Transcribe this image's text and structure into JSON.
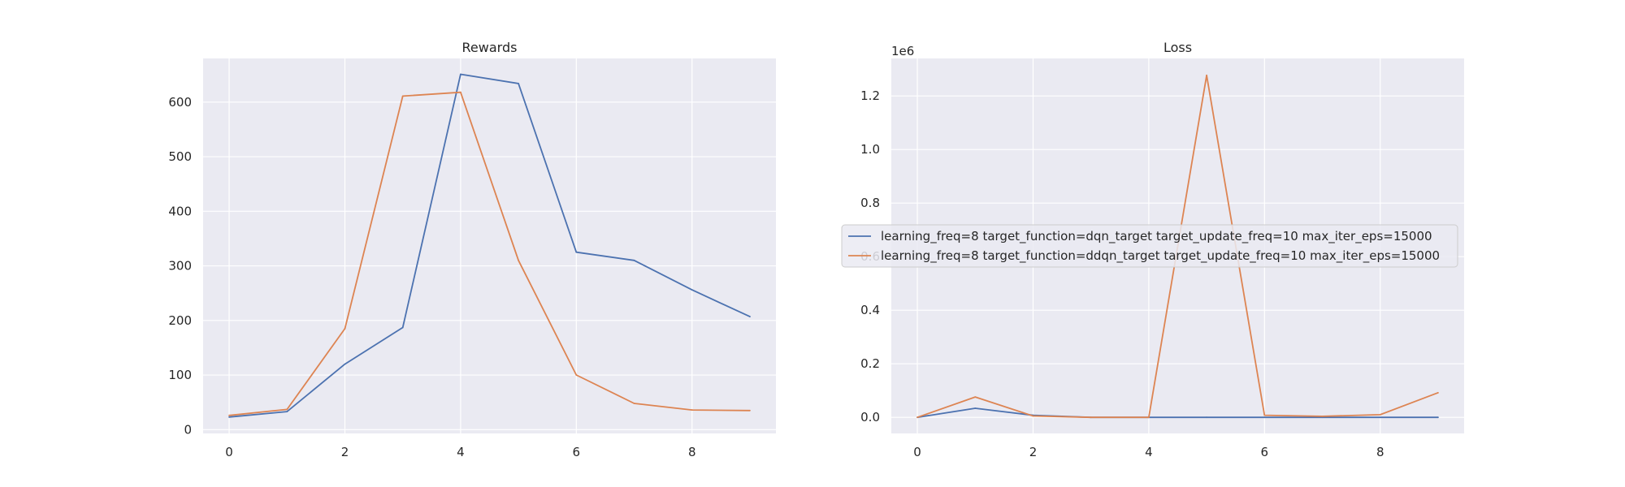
{
  "chart_data": [
    {
      "type": "line",
      "title": "Rewards",
      "xlabel": "",
      "ylabel": "",
      "xlim": [
        -0.45,
        9.45
      ],
      "ylim": [
        -7,
        680
      ],
      "xticks": [
        0,
        2,
        4,
        6,
        8
      ],
      "yticks": [
        0,
        100,
        200,
        300,
        400,
        500,
        600
      ],
      "ytick_labels": [
        "0",
        "100",
        "200",
        "300",
        "400",
        "500",
        "600"
      ],
      "offset_text": "",
      "grid": true,
      "x": [
        0,
        1,
        2,
        3,
        4,
        5,
        6,
        7,
        8,
        9
      ],
      "series": [
        {
          "name": "learning_freq=8 target_function=dqn_target target_update_freq=10 max_iter_eps=15000",
          "color": "#4c72b0",
          "values": [
            23,
            33,
            120,
            187,
            651,
            634,
            325,
            310,
            256,
            207
          ]
        },
        {
          "name": "learning_freq=8 target_function=ddqn_target target_update_freq=10 max_iter_eps=15000",
          "color": "#dd8452",
          "values": [
            26,
            37,
            185,
            611,
            618,
            310,
            100,
            48,
            36,
            35
          ]
        }
      ]
    },
    {
      "type": "line",
      "title": "Loss",
      "xlabel": "",
      "ylabel": "",
      "xlim": [
        -0.45,
        9.45
      ],
      "ylim": [
        -60000,
        1340000
      ],
      "xticks": [
        0,
        2,
        4,
        6,
        8
      ],
      "yticks": [
        0,
        200000,
        400000,
        600000,
        800000,
        1000000,
        1200000
      ],
      "ytick_labels": [
        "0.0",
        "0.2",
        "0.4",
        "0.6",
        "0.8",
        "1.0",
        "1.2"
      ],
      "offset_text": "1e6",
      "grid": true,
      "legend": "center",
      "x": [
        0,
        1,
        2,
        3,
        4,
        5,
        6,
        7,
        8,
        9
      ],
      "series": [
        {
          "name": "learning_freq=8 target_function=dqn_target target_update_freq=10 max_iter_eps=15000",
          "color": "#4c72b0",
          "values": [
            0,
            34000,
            8000,
            0,
            0,
            0,
            0,
            0,
            0,
            0
          ]
        },
        {
          "name": "learning_freq=8 target_function=ddqn_target target_update_freq=10 max_iter_eps=15000",
          "color": "#dd8452",
          "values": [
            0,
            76000,
            5000,
            0,
            0,
            1277000,
            8000,
            4000,
            10000,
            92000
          ]
        }
      ]
    }
  ]
}
